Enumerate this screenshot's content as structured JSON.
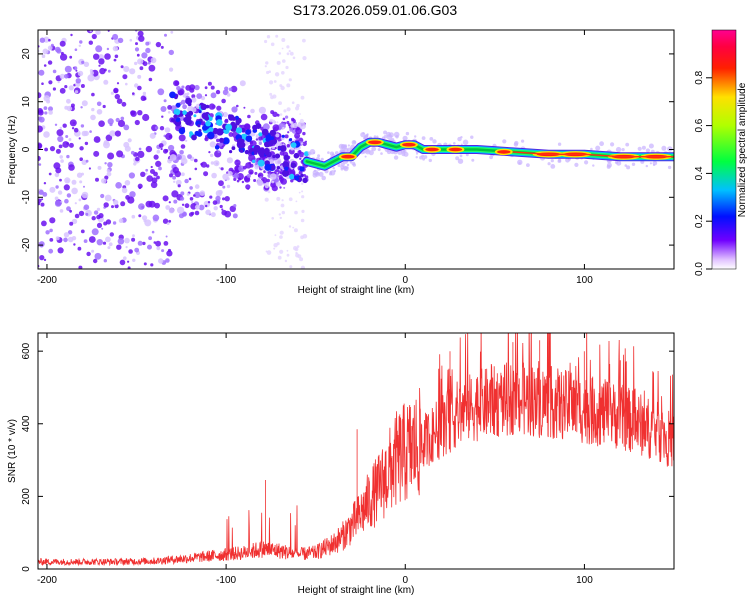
{
  "title": "S173.2026.059.01.06.G03",
  "colors": {
    "snr_line": "#f03030",
    "axis": "#000000"
  },
  "chart_data": [
    {
      "type": "heatmap",
      "name": "spectrogram",
      "xlabel": "Height of straight line (km)",
      "ylabel": "Frequency (Hz)",
      "xlim": [
        -205,
        150
      ],
      "ylim": [
        -25,
        25
      ],
      "xticks": [
        -200,
        -100,
        0,
        100
      ],
      "yticks": [
        -20,
        -10,
        0,
        10,
        20
      ],
      "colorbar": {
        "label": "Normalized spectral amplitude",
        "range": [
          0,
          1
        ],
        "ticks": [
          0.0,
          0.2,
          0.4,
          0.6,
          0.8
        ],
        "colormap": "rainbow (white-purple-blue-cyan-green-yellow-red-magenta)"
      },
      "ridge": {
        "x": [
          -55,
          -50,
          -45,
          -40,
          -35,
          -30,
          -25,
          -20,
          -15,
          -10,
          -5,
          0,
          5,
          10,
          20,
          40,
          60,
          80,
          100,
          120,
          150
        ],
        "freq": [
          -2.5,
          -3.0,
          -3.5,
          -2.5,
          -1.5,
          -1.5,
          0.5,
          1.5,
          1.5,
          1.0,
          0.5,
          1.0,
          1.0,
          0.0,
          0.0,
          0.0,
          -0.5,
          -1.0,
          -1.0,
          -1.5,
          -1.5
        ]
      }
    },
    {
      "type": "line",
      "name": "snr",
      "xlabel": "Height of straight line (km)",
      "ylabel": "SNR (10 * v/v)",
      "xlim": [
        -205,
        150
      ],
      "ylim": [
        0,
        650
      ],
      "xticks": [
        -200,
        -100,
        0,
        100
      ],
      "yticks": [
        0,
        200,
        400,
        600
      ],
      "series": [
        {
          "name": "SNR",
          "x": [
            -205,
            -180,
            -160,
            -140,
            -120,
            -100,
            -90,
            -80,
            -70,
            -60,
            -50,
            -40,
            -35,
            -30,
            -25,
            -20,
            -15,
            -10,
            -5,
            0,
            10,
            20,
            30,
            40,
            50,
            60,
            70,
            80,
            90,
            100,
            110,
            120,
            130,
            140,
            150
          ],
          "values": [
            20,
            20,
            20,
            22,
            30,
            40,
            45,
            55,
            50,
            40,
            45,
            70,
            90,
            120,
            150,
            190,
            220,
            260,
            300,
            320,
            350,
            390,
            430,
            450,
            460,
            470,
            465,
            460,
            450,
            440,
            430,
            420,
            400,
            380,
            350
          ],
          "peaks": [
            {
              "x": -78,
              "value": 245
            },
            {
              "x": -27,
              "value": 385
            },
            {
              "x": 25,
              "value": 600
            },
            {
              "x": 60,
              "value": 625
            },
            {
              "x": 75,
              "value": 630
            },
            {
              "x": 100,
              "value": 600
            },
            {
              "x": 120,
              "value": 575
            }
          ]
        }
      ]
    }
  ]
}
